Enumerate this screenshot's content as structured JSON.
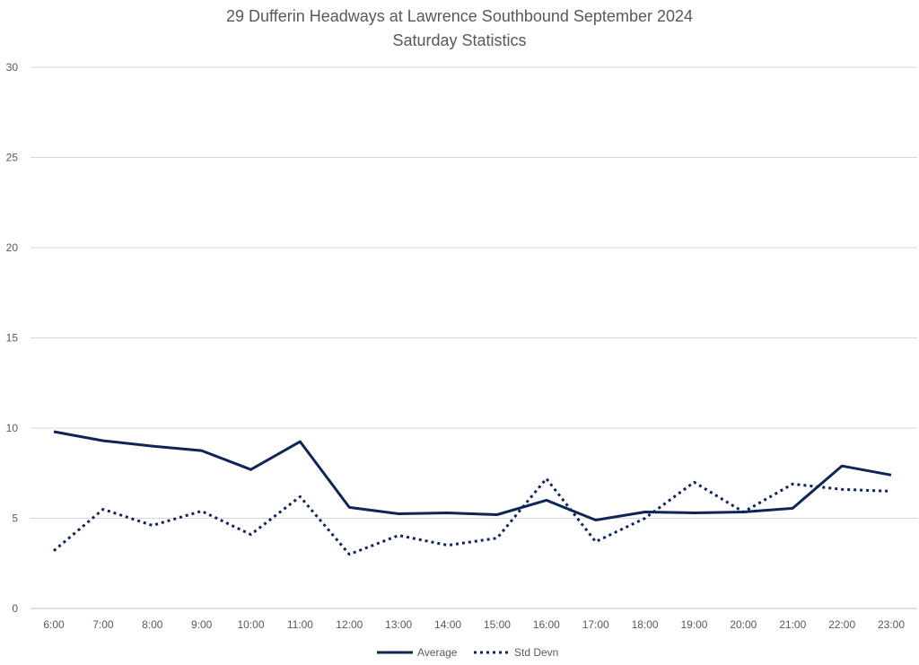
{
  "chart_data": {
    "type": "line",
    "title": "29 Dufferin Headways at Lawrence Southbound September 2024",
    "subtitle": "Saturday Statistics",
    "xlabel": "",
    "ylabel": "",
    "categories": [
      "6:00",
      "7:00",
      "8:00",
      "9:00",
      "10:00",
      "11:00",
      "12:00",
      "13:00",
      "14:00",
      "15:00",
      "16:00",
      "17:00",
      "18:00",
      "19:00",
      "20:00",
      "21:00",
      "22:00",
      "23:00"
    ],
    "ylim": [
      0,
      30
    ],
    "yticks": [
      0,
      5,
      10,
      15,
      20,
      25,
      30
    ],
    "grid": true,
    "legend_position": "bottom",
    "series": [
      {
        "name": "Average",
        "style": "solid",
        "color": "#0f2557",
        "values": [
          9.8,
          9.3,
          9.0,
          8.75,
          7.7,
          9.25,
          5.6,
          5.25,
          5.3,
          5.2,
          6.0,
          4.9,
          5.35,
          5.3,
          5.35,
          5.55,
          7.9,
          7.4
        ]
      },
      {
        "name": "Std Devn",
        "style": "dotted",
        "color": "#0f2557",
        "values": [
          3.2,
          5.5,
          4.6,
          5.4,
          4.1,
          6.2,
          3.0,
          4.05,
          3.5,
          3.9,
          7.2,
          3.7,
          5.0,
          7.0,
          5.35,
          6.9,
          6.6,
          6.5
        ]
      }
    ]
  }
}
